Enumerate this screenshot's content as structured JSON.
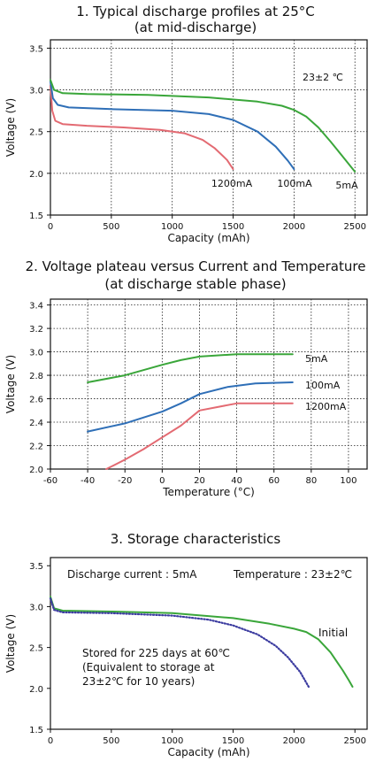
{
  "charts": [
    {
      "title": "1. Typical discharge profiles at 25°C",
      "subtitle": "(at mid-discharge)",
      "annotation": "23±2 ℃",
      "legend_labels": [
        "1200mA",
        "100mA",
        "5mA"
      ],
      "colors": {
        "red": "#e36a72",
        "blue": "#2f6fb7",
        "green": "#3aa63a"
      }
    },
    {
      "title": "2. Voltage plateau versus Current and Temperature",
      "subtitle": "(at discharge stable phase)",
      "legend_labels": [
        "5mA",
        "100mA",
        "1200mA"
      ]
    },
    {
      "title": "3. Storage characteristics",
      "note_current": "Discharge current : 5mA",
      "note_temperature": "Temperature : 23±2℃",
      "series_label_initial": "Initial",
      "stored_text": [
        "Stored for 225 days at 60℃",
        "(Equivalent to storage at",
        "23±2℃ for 10 years)"
      ]
    }
  ],
  "chart_data": [
    {
      "type": "line",
      "xlabel": "Capacity (mAh)",
      "ylabel": "Voltage (V)",
      "xlim": [
        0,
        2600
      ],
      "ylim": [
        1.5,
        3.6
      ],
      "x_ticks": [
        0,
        500,
        1000,
        1500,
        2000,
        2500
      ],
      "y_ticks": [
        1.5,
        2.0,
        2.5,
        3.0,
        3.5
      ],
      "grid": true,
      "series": [
        {
          "name": "1200mA",
          "color": "#e36a72",
          "points": [
            [
              0,
              3.05
            ],
            [
              15,
              2.75
            ],
            [
              40,
              2.63
            ],
            [
              100,
              2.59
            ],
            [
              300,
              2.57
            ],
            [
              600,
              2.55
            ],
            [
              900,
              2.52
            ],
            [
              1100,
              2.48
            ],
            [
              1250,
              2.4
            ],
            [
              1350,
              2.3
            ],
            [
              1450,
              2.16
            ],
            [
              1500,
              2.05
            ]
          ]
        },
        {
          "name": "100mA",
          "color": "#2f6fb7",
          "points": [
            [
              0,
              3.1
            ],
            [
              20,
              2.9
            ],
            [
              60,
              2.82
            ],
            [
              150,
              2.79
            ],
            [
              500,
              2.77
            ],
            [
              1000,
              2.75
            ],
            [
              1300,
              2.71
            ],
            [
              1500,
              2.64
            ],
            [
              1700,
              2.5
            ],
            [
              1850,
              2.32
            ],
            [
              1950,
              2.15
            ],
            [
              2000,
              2.05
            ]
          ]
        },
        {
          "name": "5mA",
          "color": "#3aa63a",
          "points": [
            [
              0,
              3.12
            ],
            [
              30,
              3.0
            ],
            [
              100,
              2.96
            ],
            [
              300,
              2.95
            ],
            [
              800,
              2.94
            ],
            [
              1300,
              2.91
            ],
            [
              1700,
              2.86
            ],
            [
              1900,
              2.81
            ],
            [
              2000,
              2.76
            ],
            [
              2100,
              2.68
            ],
            [
              2200,
              2.55
            ],
            [
              2300,
              2.38
            ],
            [
              2400,
              2.2
            ],
            [
              2500,
              2.02
            ]
          ]
        }
      ]
    },
    {
      "type": "line",
      "xlabel": "Temperature (°C)",
      "ylabel": "Voltage (V)",
      "xlim": [
        -60,
        110
      ],
      "ylim": [
        2.0,
        3.45
      ],
      "x_ticks": [
        -60,
        -40,
        -20,
        0,
        20,
        40,
        60,
        80,
        100
      ],
      "y_ticks": [
        2.0,
        2.2,
        2.4,
        2.6,
        2.8,
        3.0,
        3.2,
        3.4
      ],
      "grid": true,
      "series": [
        {
          "name": "5mA",
          "color": "#3aa63a",
          "points": [
            [
              -40,
              2.74
            ],
            [
              -20,
              2.8
            ],
            [
              0,
              2.89
            ],
            [
              10,
              2.93
            ],
            [
              20,
              2.96
            ],
            [
              40,
              2.98
            ],
            [
              70,
              2.98
            ]
          ]
        },
        {
          "name": "100mA",
          "color": "#2f6fb7",
          "points": [
            [
              -40,
              2.32
            ],
            [
              -20,
              2.39
            ],
            [
              0,
              2.49
            ],
            [
              10,
              2.56
            ],
            [
              20,
              2.64
            ],
            [
              35,
              2.7
            ],
            [
              50,
              2.73
            ],
            [
              70,
              2.74
            ]
          ]
        },
        {
          "name": "1200mA",
          "color": "#e36a72",
          "points": [
            [
              -30,
              2.0
            ],
            [
              -20,
              2.08
            ],
            [
              -10,
              2.17
            ],
            [
              0,
              2.27
            ],
            [
              10,
              2.37
            ],
            [
              20,
              2.5
            ],
            [
              40,
              2.56
            ],
            [
              70,
              2.56
            ]
          ]
        }
      ]
    },
    {
      "type": "line",
      "xlabel": "Capacity (mAh)",
      "ylabel": "Voltage (V)",
      "xlim": [
        0,
        2600
      ],
      "ylim": [
        1.5,
        3.6
      ],
      "x_ticks": [
        0,
        500,
        1000,
        1500,
        2000,
        2500
      ],
      "y_ticks": [
        1.5,
        2.0,
        2.5,
        3.0,
        3.5
      ],
      "grid": false,
      "series": [
        {
          "name": "Initial",
          "color": "#3aa63a",
          "style": "solid",
          "points": [
            [
              0,
              3.12
            ],
            [
              30,
              2.98
            ],
            [
              100,
              2.95
            ],
            [
              500,
              2.94
            ],
            [
              1000,
              2.92
            ],
            [
              1500,
              2.86
            ],
            [
              1800,
              2.79
            ],
            [
              2000,
              2.73
            ],
            [
              2100,
              2.69
            ],
            [
              2200,
              2.6
            ],
            [
              2300,
              2.44
            ],
            [
              2400,
              2.22
            ],
            [
              2450,
              2.1
            ],
            [
              2480,
              2.02
            ]
          ]
        },
        {
          "name": "Stored for 225 days at 60℃",
          "color": "#3c3ca0",
          "style": "dotted",
          "points": [
            [
              0,
              3.1
            ],
            [
              30,
              2.96
            ],
            [
              100,
              2.93
            ],
            [
              500,
              2.92
            ],
            [
              1000,
              2.89
            ],
            [
              1300,
              2.84
            ],
            [
              1500,
              2.77
            ],
            [
              1700,
              2.66
            ],
            [
              1850,
              2.52
            ],
            [
              1950,
              2.38
            ],
            [
              2050,
              2.2
            ],
            [
              2120,
              2.02
            ]
          ]
        }
      ]
    }
  ]
}
